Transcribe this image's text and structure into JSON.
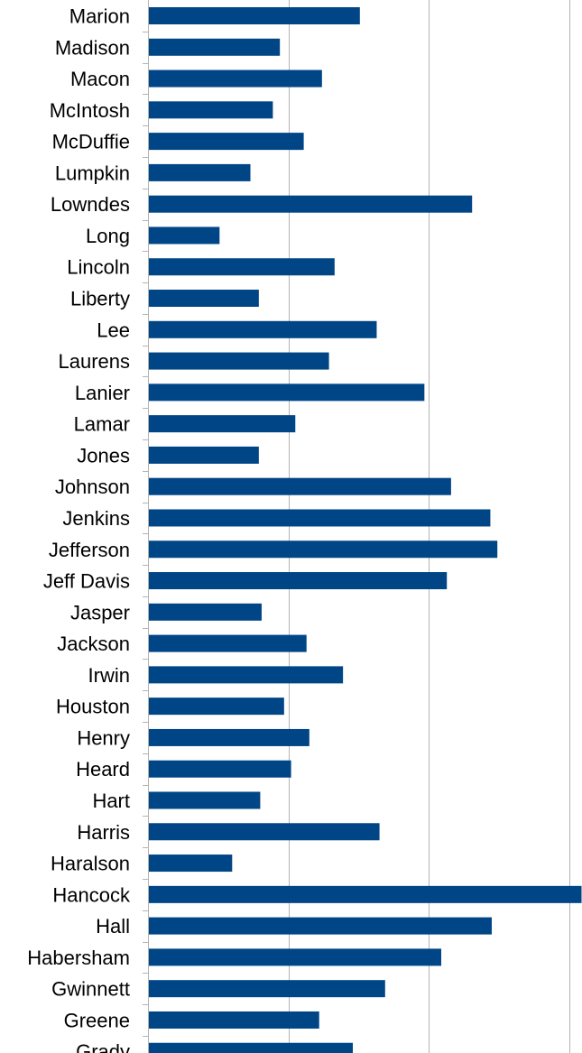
{
  "chart_data": {
    "type": "bar",
    "orientation": "horizontal",
    "categories": [
      "Marion",
      "Madison",
      "Macon",
      "McIntosh",
      "McDuffie",
      "Lumpkin",
      "Lowndes",
      "Long",
      "Lincoln",
      "Liberty",
      "Lee",
      "Laurens",
      "Lanier",
      "Lamar",
      "Jones",
      "Johnson",
      "Jenkins",
      "Jefferson",
      "Jeff Davis",
      "Jasper",
      "Jackson",
      "Irwin",
      "Houston",
      "Henry",
      "Heard",
      "Hart",
      "Harris",
      "Haralson",
      "Hancock",
      "Hall",
      "Habersham",
      "Gwinnett",
      "Greene",
      "Grady"
    ],
    "values": [
      1.51,
      0.94,
      1.24,
      0.89,
      1.11,
      0.73,
      2.31,
      0.51,
      1.33,
      0.79,
      1.63,
      1.29,
      1.97,
      1.05,
      0.79,
      2.16,
      2.44,
      2.49,
      2.13,
      0.81,
      1.13,
      1.39,
      0.97,
      1.15,
      1.02,
      0.8,
      1.65,
      0.6,
      3.09,
      2.45,
      2.09,
      1.69,
      1.22,
      1.46
    ],
    "title": "",
    "xlabel": "",
    "ylabel": "",
    "xlim": [
      0,
      3.1
    ],
    "grid": true,
    "colors": {
      "bar": "#004586",
      "grid": "#b3b3b3",
      "axis": "#b3b3b3",
      "text": "#000000"
    }
  }
}
